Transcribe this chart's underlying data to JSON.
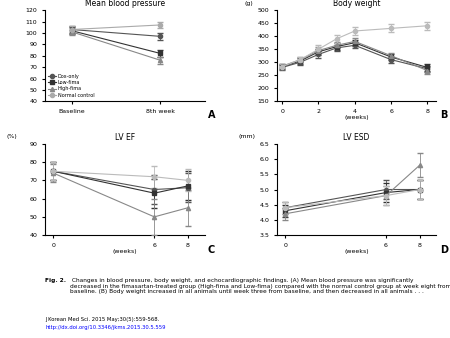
{
  "bp": {
    "title": "Mean blood pressure",
    "ylabel": "",
    "xlabel_ticks": [
      "Baseline",
      "8th week"
    ],
    "ylim": [
      40,
      120
    ],
    "yticks": [
      40,
      50,
      60,
      70,
      80,
      90,
      100,
      110,
      120
    ],
    "series": {
      "Dox-only": {
        "x": [
          0,
          1
        ],
        "y": [
          103,
          97
        ],
        "yerr": [
          3,
          3
        ],
        "marker": "o",
        "color": "#555555",
        "ls": "-"
      },
      "Low-fima": {
        "x": [
          0,
          1
        ],
        "y": [
          102,
          82
        ],
        "yerr": [
          3,
          3
        ],
        "marker": "s",
        "color": "#333333",
        "ls": "-"
      },
      "High-fima": {
        "x": [
          0,
          1
        ],
        "y": [
          101,
          76
        ],
        "yerr": [
          3,
          3
        ],
        "marker": "^",
        "color": "#888888",
        "ls": "-"
      },
      "Normal control": {
        "x": [
          0,
          1
        ],
        "y": [
          103,
          107
        ],
        "yerr": [
          3,
          3
        ],
        "marker": "o",
        "color": "#aaaaaa",
        "ls": "-"
      }
    },
    "label_A": "A"
  },
  "bw": {
    "title": "Body weight",
    "ylabel": "(g)",
    "xlabel": "(weeks)",
    "xlim": [
      -0.3,
      8.5
    ],
    "xticks": [
      0,
      2,
      4,
      6,
      8
    ],
    "ylim": [
      150,
      500
    ],
    "yticks": [
      150,
      200,
      250,
      300,
      350,
      400,
      450,
      500
    ],
    "series": {
      "Dox-only": {
        "x": [
          0,
          1,
          2,
          3,
          4,
          6,
          8
        ],
        "y": [
          280,
          300,
          330,
          355,
          365,
          310,
          275
        ],
        "yerr": [
          10,
          10,
          12,
          12,
          12,
          12,
          12
        ],
        "marker": "o",
        "color": "#555555",
        "ls": "-"
      },
      "Low-fima": {
        "x": [
          0,
          1,
          2,
          3,
          4,
          6,
          8
        ],
        "y": [
          283,
          305,
          340,
          360,
          375,
          320,
          280
        ],
        "yerr": [
          10,
          10,
          12,
          12,
          12,
          12,
          12
        ],
        "marker": "s",
        "color": "#333333",
        "ls": "-"
      },
      "High-fima": {
        "x": [
          0,
          1,
          2,
          3,
          4,
          6,
          8
        ],
        "y": [
          285,
          310,
          345,
          365,
          380,
          325,
          268
        ],
        "yerr": [
          10,
          10,
          12,
          12,
          12,
          12,
          12
        ],
        "marker": "^",
        "color": "#888888",
        "ls": "-"
      },
      "Normal control": {
        "x": [
          0,
          1,
          2,
          3,
          4,
          6,
          8
        ],
        "y": [
          283,
          310,
          350,
          390,
          420,
          430,
          440
        ],
        "yerr": [
          10,
          12,
          15,
          15,
          15,
          15,
          15
        ],
        "marker": "o",
        "color": "#bbbbbb",
        "ls": "-"
      }
    },
    "label_B": "B"
  },
  "lvef": {
    "title": "LV EF",
    "ylabel": "(%)",
    "xlabel": "(weeks)",
    "xlim": [
      -0.5,
      9
    ],
    "xticks": [
      0,
      6,
      8
    ],
    "ylim": [
      40,
      90
    ],
    "yticks": [
      40,
      50,
      60,
      70,
      80,
      90
    ],
    "series": {
      "Dox-only": {
        "x": [
          0,
          6,
          8
        ],
        "y": [
          75,
          65,
          66
        ],
        "yerr": [
          5,
          8,
          8
        ],
        "marker": "o",
        "color": "#555555",
        "ls": "-"
      },
      "Low-fima": {
        "x": [
          0,
          6,
          8
        ],
        "y": [
          75,
          63,
          67
        ],
        "yerr": [
          5,
          8,
          8
        ],
        "marker": "s",
        "color": "#333333",
        "ls": "-"
      },
      "High-fima": {
        "x": [
          0,
          6,
          8
        ],
        "y": [
          74,
          50,
          55
        ],
        "yerr": [
          5,
          10,
          10
        ],
        "marker": "^",
        "color": "#888888",
        "ls": "-"
      },
      "Normal control": {
        "x": [
          0,
          6,
          8
        ],
        "y": [
          75,
          72,
          70
        ],
        "yerr": [
          5,
          6,
          6
        ],
        "marker": "o",
        "color": "#bbbbbb",
        "ls": "-"
      }
    },
    "label_C": "C"
  },
  "lvesd": {
    "title": "LV ESD",
    "ylabel": "(mm)",
    "xlabel": "(weeks)",
    "xlim": [
      -0.5,
      9
    ],
    "xticks": [
      0,
      6,
      8
    ],
    "ylim": [
      3.5,
      6.5
    ],
    "yticks": [
      3.5,
      4.0,
      4.5,
      5.0,
      5.5,
      6.0,
      6.5
    ],
    "series": {
      "Dox-only": {
        "x": [
          0,
          6,
          8
        ],
        "y": [
          4.4,
          5.0,
          5.0
        ],
        "yerr": [
          0.2,
          0.3,
          0.3
        ],
        "marker": "o",
        "color": "#555555",
        "ls": "-"
      },
      "Low-fima": {
        "x": [
          0,
          6,
          8
        ],
        "y": [
          4.3,
          4.9,
          5.0
        ],
        "yerr": [
          0.2,
          0.3,
          0.3
        ],
        "marker": "s",
        "color": "#333333",
        "ls": "-"
      },
      "High-fima": {
        "x": [
          0,
          6,
          8
        ],
        "y": [
          4.2,
          4.8,
          5.8
        ],
        "yerr": [
          0.2,
          0.3,
          0.4
        ],
        "marker": "^",
        "color": "#888888",
        "ls": "-"
      },
      "Normal control": {
        "x": [
          0,
          6,
          8
        ],
        "y": [
          4.4,
          4.8,
          5.0
        ],
        "yerr": [
          0.2,
          0.3,
          0.3
        ],
        "marker": "o",
        "color": "#bbbbbb",
        "ls": "-"
      }
    },
    "label_D": "D"
  },
  "caption_bold": "Fig. 2.",
  "caption_rest": " Changes in blood pressure, body weight, and echocardiographic findings. (A) Mean blood pressure was significantly\ndecreased in the fimasartan-treated group (High-fima and Low-fima) compared with the normal control group at week eight from\nbaseline. (B) Body weight increased in all animals until week three from baseline, and then decreased in all animals . . .",
  "journal_line": "J Korean Med Sci. 2015 May;30(5):559-568.",
  "doi_line": "http://dx.doi.org/10.3346/jkms.2015.30.5.559",
  "bg_color": "#ffffff"
}
